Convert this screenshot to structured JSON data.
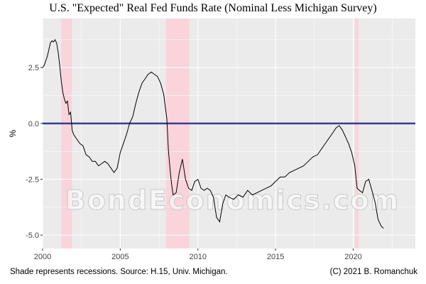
{
  "title": "U.S. \"Expected\" Real Fed Funds Rate (Nominal Less Michigan Survey)",
  "footer": {
    "left": "Shade represents recessions. Source: H.15, Univ. Michigan.",
    "right": "(C) 2021 B. Romanchuk"
  },
  "watermark": "BondEconomics.com",
  "colors": {
    "panel_background": "#ebebeb",
    "grid": "#ffffff",
    "series_line": "#000000",
    "zero_line": "#3a3a9a",
    "recession_shade": "#f9d4da"
  },
  "chart_data": {
    "type": "line",
    "title": "U.S. \"Expected\" Real Fed Funds Rate (Nominal Less Michigan Survey)",
    "xlabel": "",
    "ylabel": "%",
    "xlim": [
      2000,
      2024
    ],
    "ylim": [
      -5.6,
      4.7
    ],
    "x_ticks": [
      2000,
      2005,
      2010,
      2015,
      2020
    ],
    "x_tick_labels": [
      "2000",
      "2005",
      "2010",
      "2015",
      "2020"
    ],
    "y_ticks": [
      2.5,
      0.0,
      -2.5,
      -5.0
    ],
    "y_tick_labels": [
      "2.5",
      "0.0",
      "-2.5",
      "-5.0"
    ],
    "grid": true,
    "horizontal_line": 0.0,
    "recessions": [
      [
        2001.2,
        2001.9
      ],
      [
        2007.95,
        2009.45
      ],
      [
        2020.1,
        2020.35
      ]
    ],
    "series": [
      {
        "points": [
          [
            2000.0,
            2.5
          ],
          [
            2000.1,
            2.6
          ],
          [
            2000.2,
            2.8
          ],
          [
            2000.3,
            3.0
          ],
          [
            2000.4,
            3.3
          ],
          [
            2000.5,
            3.6
          ],
          [
            2000.6,
            3.7
          ],
          [
            2000.7,
            3.65
          ],
          [
            2000.8,
            3.75
          ],
          [
            2000.9,
            3.6
          ],
          [
            2001.0,
            3.2
          ],
          [
            2001.1,
            2.6
          ],
          [
            2001.2,
            1.9
          ],
          [
            2001.3,
            1.4
          ],
          [
            2001.4,
            1.1
          ],
          [
            2001.5,
            0.9
          ],
          [
            2001.6,
            1.0
          ],
          [
            2001.7,
            0.4
          ],
          [
            2001.8,
            0.5
          ],
          [
            2001.9,
            -0.3
          ],
          [
            2002.0,
            -0.5
          ],
          [
            2002.2,
            -0.7
          ],
          [
            2002.4,
            -0.9
          ],
          [
            2002.6,
            -1.0
          ],
          [
            2002.8,
            -1.4
          ],
          [
            2003.0,
            -1.5
          ],
          [
            2003.2,
            -1.7
          ],
          [
            2003.4,
            -1.7
          ],
          [
            2003.6,
            -1.9
          ],
          [
            2003.8,
            -1.8
          ],
          [
            2004.0,
            -1.7
          ],
          [
            2004.2,
            -1.8
          ],
          [
            2004.4,
            -2.0
          ],
          [
            2004.6,
            -2.2
          ],
          [
            2004.8,
            -2.0
          ],
          [
            2005.0,
            -1.3
          ],
          [
            2005.2,
            -0.9
          ],
          [
            2005.4,
            -0.5
          ],
          [
            2005.6,
            0.0
          ],
          [
            2005.8,
            0.3
          ],
          [
            2006.0,
            0.9
          ],
          [
            2006.2,
            1.4
          ],
          [
            2006.4,
            1.8
          ],
          [
            2006.6,
            2.0
          ],
          [
            2006.8,
            2.2
          ],
          [
            2007.0,
            2.3
          ],
          [
            2007.2,
            2.2
          ],
          [
            2007.4,
            2.1
          ],
          [
            2007.6,
            1.8
          ],
          [
            2007.8,
            1.3
          ],
          [
            2008.0,
            0.2
          ],
          [
            2008.1,
            -1.2
          ],
          [
            2008.2,
            -2.0
          ],
          [
            2008.3,
            -2.7
          ],
          [
            2008.4,
            -3.2
          ],
          [
            2008.6,
            -3.1
          ],
          [
            2008.8,
            -2.2
          ],
          [
            2009.0,
            -1.6
          ],
          [
            2009.2,
            -2.5
          ],
          [
            2009.4,
            -2.9
          ],
          [
            2009.6,
            -3.0
          ],
          [
            2009.8,
            -2.6
          ],
          [
            2010.0,
            -2.5
          ],
          [
            2010.2,
            -2.9
          ],
          [
            2010.4,
            -3.0
          ],
          [
            2010.6,
            -2.9
          ],
          [
            2010.8,
            -3.0
          ],
          [
            2011.0,
            -3.3
          ],
          [
            2011.2,
            -4.2
          ],
          [
            2011.4,
            -4.4
          ],
          [
            2011.6,
            -3.6
          ],
          [
            2011.8,
            -3.2
          ],
          [
            2012.0,
            -3.3
          ],
          [
            2012.3,
            -3.4
          ],
          [
            2012.6,
            -3.2
          ],
          [
            2012.9,
            -3.3
          ],
          [
            2013.2,
            -3.0
          ],
          [
            2013.5,
            -3.2
          ],
          [
            2013.8,
            -3.1
          ],
          [
            2014.1,
            -3.0
          ],
          [
            2014.4,
            -2.9
          ],
          [
            2014.7,
            -2.8
          ],
          [
            2015.0,
            -2.6
          ],
          [
            2015.3,
            -2.4
          ],
          [
            2015.6,
            -2.4
          ],
          [
            2015.9,
            -2.2
          ],
          [
            2016.2,
            -2.1
          ],
          [
            2016.5,
            -2.0
          ],
          [
            2016.8,
            -1.9
          ],
          [
            2017.1,
            -1.7
          ],
          [
            2017.4,
            -1.5
          ],
          [
            2017.7,
            -1.4
          ],
          [
            2018.0,
            -1.1
          ],
          [
            2018.3,
            -0.8
          ],
          [
            2018.6,
            -0.5
          ],
          [
            2018.9,
            -0.2
          ],
          [
            2019.1,
            -0.1
          ],
          [
            2019.3,
            -0.3
          ],
          [
            2019.5,
            -0.6
          ],
          [
            2019.7,
            -0.9
          ],
          [
            2019.9,
            -1.3
          ],
          [
            2020.1,
            -1.9
          ],
          [
            2020.25,
            -2.9
          ],
          [
            2020.4,
            -3.0
          ],
          [
            2020.6,
            -3.1
          ],
          [
            2020.8,
            -2.6
          ],
          [
            2021.0,
            -2.5
          ],
          [
            2021.2,
            -3.0
          ],
          [
            2021.4,
            -3.5
          ],
          [
            2021.6,
            -4.3
          ],
          [
            2021.8,
            -4.6
          ],
          [
            2021.95,
            -4.7
          ]
        ]
      }
    ]
  }
}
